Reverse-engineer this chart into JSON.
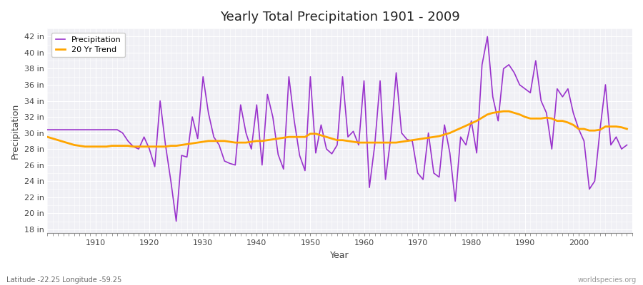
{
  "title": "Yearly Total Precipitation 1901 - 2009",
  "xlabel": "Year",
  "ylabel": "Precipitation",
  "lat_lon_label": "Latitude -22.25 Longitude -59.25",
  "watermark": "worldspecies.org",
  "precip_color": "#9932CC",
  "trend_color": "#FFA500",
  "plot_bg_color": "#f0f0f5",
  "fig_bg_color": "#ffffff",
  "grid_color": "#ffffff",
  "ylim": [
    17.5,
    43.0
  ],
  "ytick_labels": [
    "18 in",
    "20 in",
    "22 in",
    "24 in",
    "26 in",
    "28 in",
    "30 in",
    "32 in",
    "34 in",
    "36 in",
    "38 in",
    "40 in",
    "42 in"
  ],
  "ytick_values": [
    18,
    20,
    22,
    24,
    26,
    28,
    30,
    32,
    34,
    36,
    38,
    40,
    42
  ],
  "xlim": [
    1901,
    2010
  ],
  "xtick_values": [
    1910,
    1920,
    1930,
    1940,
    1950,
    1960,
    1970,
    1980,
    1990,
    2000
  ],
  "years": [
    1901,
    1902,
    1903,
    1904,
    1905,
    1906,
    1907,
    1908,
    1909,
    1910,
    1911,
    1912,
    1913,
    1914,
    1915,
    1916,
    1917,
    1918,
    1919,
    1920,
    1921,
    1922,
    1923,
    1924,
    1925,
    1926,
    1927,
    1928,
    1929,
    1930,
    1931,
    1932,
    1933,
    1934,
    1935,
    1936,
    1937,
    1938,
    1939,
    1940,
    1941,
    1942,
    1943,
    1944,
    1945,
    1946,
    1947,
    1948,
    1949,
    1950,
    1951,
    1952,
    1953,
    1954,
    1955,
    1956,
    1957,
    1958,
    1959,
    1960,
    1961,
    1962,
    1963,
    1964,
    1965,
    1966,
    1967,
    1968,
    1969,
    1970,
    1971,
    1972,
    1973,
    1974,
    1975,
    1976,
    1977,
    1978,
    1979,
    1980,
    1981,
    1982,
    1983,
    1984,
    1985,
    1986,
    1987,
    1988,
    1989,
    1990,
    1991,
    1992,
    1993,
    1994,
    1995,
    1996,
    1997,
    1998,
    1999,
    2000,
    2001,
    2002,
    2003,
    2004,
    2005,
    2006,
    2007,
    2008,
    2009
  ],
  "precipitation": [
    30.4,
    30.4,
    30.4,
    30.4,
    30.4,
    30.4,
    30.4,
    30.4,
    30.4,
    30.4,
    30.4,
    30.4,
    30.4,
    30.4,
    30.0,
    29.0,
    28.3,
    28.0,
    29.5,
    28.0,
    25.8,
    34.0,
    28.5,
    24.0,
    19.0,
    27.2,
    27.0,
    32.0,
    29.3,
    37.0,
    32.5,
    29.5,
    28.5,
    26.5,
    26.2,
    26.0,
    33.5,
    30.0,
    28.0,
    33.5,
    26.0,
    34.8,
    32.0,
    27.3,
    25.5,
    37.0,
    31.5,
    27.2,
    25.3,
    37.0,
    27.5,
    31.0,
    28.0,
    27.4,
    28.5,
    37.0,
    29.5,
    30.2,
    28.5,
    36.5,
    23.2,
    28.5,
    36.5,
    24.2,
    29.5,
    37.5,
    30.0,
    29.2,
    29.0,
    25.0,
    24.2,
    30.0,
    25.0,
    24.5,
    31.0,
    27.5,
    21.5,
    29.5,
    28.5,
    31.5,
    27.5,
    38.5,
    42.0,
    34.5,
    31.5,
    38.0,
    38.5,
    37.5,
    36.0,
    35.5,
    35.0,
    39.0,
    34.0,
    32.5,
    28.0,
    35.5,
    34.5,
    35.5,
    32.5,
    30.5,
    29.0,
    23.0,
    24.0,
    30.5,
    36.0,
    28.5,
    29.5,
    28.0,
    28.5
  ],
  "trend": [
    29.5,
    29.3,
    29.1,
    28.9,
    28.7,
    28.5,
    28.4,
    28.3,
    28.3,
    28.3,
    28.3,
    28.3,
    28.4,
    28.4,
    28.4,
    28.4,
    28.3,
    28.3,
    28.3,
    28.3,
    28.3,
    28.3,
    28.3,
    28.4,
    28.4,
    28.5,
    28.6,
    28.7,
    28.8,
    28.9,
    29.0,
    29.0,
    29.0,
    29.0,
    28.9,
    28.8,
    28.8,
    28.8,
    28.9,
    29.0,
    29.0,
    29.1,
    29.2,
    29.3,
    29.4,
    29.5,
    29.5,
    29.5,
    29.5,
    29.9,
    29.9,
    29.7,
    29.5,
    29.3,
    29.1,
    29.1,
    29.0,
    28.9,
    28.8,
    28.8,
    28.8,
    28.8,
    28.8,
    28.8,
    28.8,
    28.8,
    28.9,
    29.0,
    29.1,
    29.2,
    29.3,
    29.4,
    29.5,
    29.6,
    29.8,
    30.0,
    30.3,
    30.6,
    30.9,
    31.2,
    31.5,
    31.9,
    32.3,
    32.5,
    32.6,
    32.7,
    32.7,
    32.5,
    32.3,
    32.0,
    31.8,
    31.8,
    31.8,
    31.9,
    31.8,
    31.5,
    31.5,
    31.3,
    31.0,
    30.5,
    30.5,
    30.3,
    30.3,
    30.4,
    30.8,
    30.8,
    30.8,
    30.7,
    30.5
  ]
}
